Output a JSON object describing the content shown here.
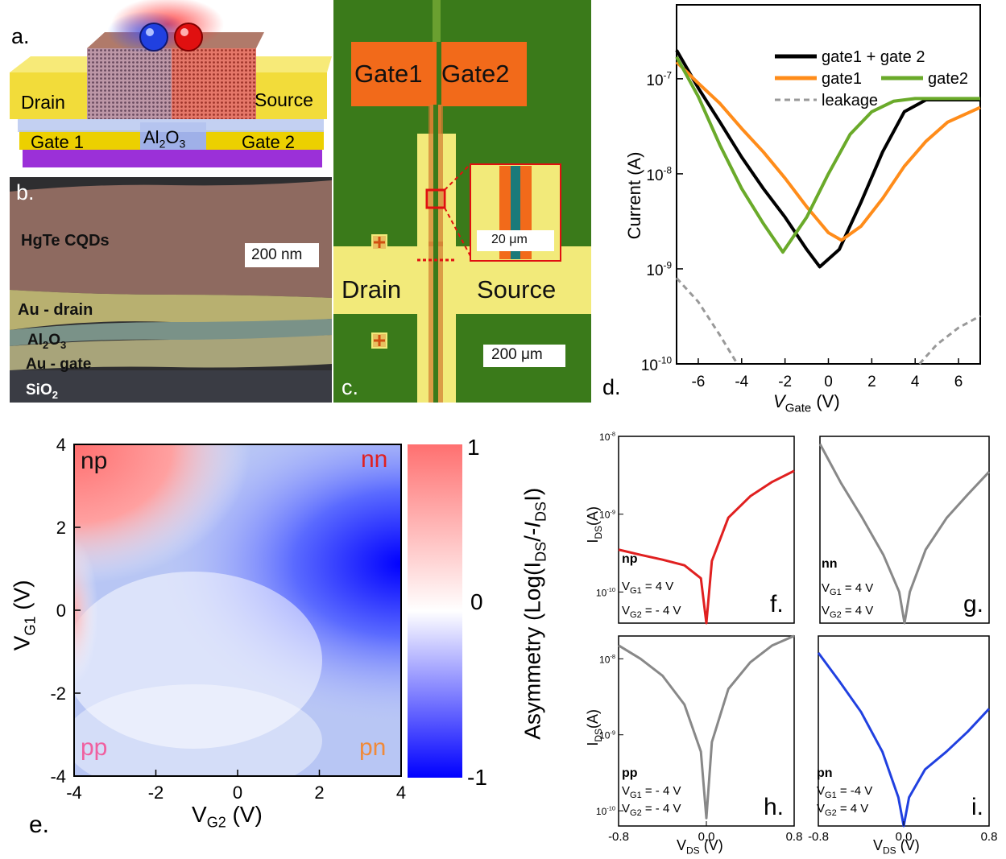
{
  "panel_a": {
    "letter": "a.",
    "drain": "Drain",
    "source": "Source",
    "gate1": "Gate 1",
    "gate2": "Gate 2",
    "oxide": "Al",
    "oxide_sub2": "2",
    "oxide_o": "O",
    "oxide_sub3": "3"
  },
  "panel_b": {
    "letter": "b.",
    "hgte": "HgTe CQDs",
    "scale": "200 nm",
    "au_drain": "Au - drain",
    "al": "Al",
    "al_sub2": "2",
    "al_o": "O",
    "al_sub3": "3",
    "au_gate": "Au - gate",
    "sio": "SiO",
    "sio_sub2": "2"
  },
  "panel_c": {
    "letter": "c.",
    "gate1": "Gate1",
    "gate2": "Gate2",
    "drain": "Drain",
    "source": "Source",
    "scale_large": "200 μm",
    "scale_small": "20 μm"
  },
  "panel_d": {
    "letter": "d.",
    "ylabel": "Current (A)",
    "xlabel_v": "V",
    "xlabel_sub": "Gate",
    "xlabel_unit": " (V)",
    "xticks": [
      "-6",
      "-4",
      "-2",
      "0",
      "2",
      "4",
      "6"
    ],
    "ytick_base": "10",
    "ytick_exps": [
      "-7",
      "-8",
      "-9",
      "-10"
    ],
    "legend": [
      "gate1 + gate 2",
      "gate1",
      "gate2",
      "leakage"
    ],
    "colors": {
      "both": "#000000",
      "gate1": "#ff8c1a",
      "gate2": "#6aaa2a",
      "leakage": "#999999"
    }
  },
  "panel_e": {
    "letter": "e.",
    "ylabel_v": "V",
    "ylabel_sub": "G1",
    "ylabel_unit": " (V)",
    "xlabel_v": "V",
    "xlabel_sub": "G2",
    "xlabel_unit": " (V)",
    "xticks": [
      "-4",
      "-2",
      "0",
      "2",
      "4"
    ],
    "yticks": [
      "4",
      "2",
      "0",
      "-2",
      "-4"
    ],
    "corner_np": "np",
    "corner_nn": "nn",
    "corner_pp": "pp",
    "corner_pn": "pn",
    "colorbar_ticks": [
      "1",
      "0",
      "-1"
    ],
    "colorbar_label_a": "Asymmetry (Log(I",
    "colorbar_sub1": "DS",
    "colorbar_label_b": "/-",
    "colorbar_i": "I",
    "colorbar_sub2": "DS",
    "colorbar_label_c": "I)",
    "colors": {
      "pos": "#ff7070",
      "neg": "#0000ff",
      "mid": "#ffffff"
    }
  },
  "panels_fghi": {
    "ylabel_i": "I",
    "ylabel_sub": "DS",
    "ylabel_unit": "(A)",
    "xlabel_v": "V",
    "xlabel_sub": "DS",
    "xlabel_unit": " (V)",
    "ytick_base": "10",
    "xticks_left": [
      "-0.8",
      "0.0",
      "0.8"
    ],
    "xticks_right": [
      "-0.8",
      "0.0",
      "0.8"
    ],
    "f": {
      "letter": "f.",
      "tag": "np",
      "vg1": "V",
      "vg1_sub": "G1",
      "vg1_val": " =  4 V",
      "vg2": "V",
      "vg2_sub": "G2",
      "vg2_val": " = - 4 V",
      "color": "#e02020",
      "exps": [
        "-8",
        "-9",
        "-10"
      ]
    },
    "g": {
      "letter": "g.",
      "tag": "nn",
      "vg1": "V",
      "vg1_sub": "G1",
      "vg1_val": " = 4 V",
      "vg2": "V",
      "vg2_sub": "G2",
      "vg2_val": " = 4 V",
      "color": "#888888"
    },
    "h": {
      "letter": "h.",
      "tag": "pp",
      "vg1": "V",
      "vg1_sub": "G1",
      "vg1_val": " = - 4 V",
      "vg2": "V",
      "vg2_sub": "G2",
      "vg2_val": " = - 4 V",
      "color": "#888888",
      "exps": [
        "-8",
        "-9",
        "-10"
      ]
    },
    "i": {
      "letter": "i.",
      "tag": "pn",
      "vg1": "V",
      "vg1_sub": "G1",
      "vg1_val": " = -4 V",
      "vg2": "V",
      "vg2_sub": "G2",
      "vg2_val": " = 4 V",
      "color": "#2040e0"
    }
  },
  "chart_data": [
    {
      "type": "line",
      "panel": "d",
      "xlabel": "VGate (V)",
      "ylabel": "Current (A)",
      "xlim": [
        -7,
        7
      ],
      "ylim": [
        1e-10,
        6e-07
      ],
      "yscale": "log",
      "series": [
        {
          "name": "gate1 + gate 2",
          "x": [
            -7,
            -6,
            -5,
            -4,
            -3,
            -2,
            -1,
            -0.4,
            0.5,
            1.5,
            2.5,
            3.5,
            4.5,
            5.5,
            7
          ],
          "y": [
            2e-07,
            8e-08,
            3.5e-08,
            1.5e-08,
            7e-09,
            3.5e-09,
            1.6e-09,
            1.05e-09,
            1.6e-09,
            5e-09,
            1.7e-08,
            4.5e-08,
            6e-08,
            6e-08,
            6e-08
          ]
        },
        {
          "name": "gate1",
          "x": [
            -7,
            -6,
            -5,
            -4,
            -3,
            -2,
            -1,
            0,
            0.6,
            1.5,
            2.5,
            3.5,
            4.5,
            5.5,
            7
          ],
          "y": [
            1.5e-07,
            9e-08,
            5.5e-08,
            3e-08,
            1.7e-08,
            9e-09,
            4.5e-09,
            2.4e-09,
            2e-09,
            2.8e-09,
            5.5e-09,
            1.2e-08,
            2.2e-08,
            3.5e-08,
            5e-08
          ]
        },
        {
          "name": "gate2",
          "x": [
            -7,
            -6,
            -5,
            -4,
            -3,
            -2.1,
            -1,
            0,
            1,
            2,
            3,
            4,
            5,
            6,
            7
          ],
          "y": [
            1.7e-07,
            6.5e-08,
            2e-08,
            7e-09,
            3e-09,
            1.5e-09,
            3.5e-09,
            1e-08,
            2.6e-08,
            4.5e-08,
            5.8e-08,
            6.2e-08,
            6.2e-08,
            6.2e-08,
            6.2e-08
          ]
        },
        {
          "name": "leakage",
          "x": [
            -7,
            -6,
            -5,
            -4.2,
            4.2,
            5,
            6,
            7
          ],
          "y": [
            8e-10,
            4.5e-10,
            2e-10,
            1e-10,
            1e-10,
            1.6e-10,
            2.4e-10,
            3.2e-10
          ]
        }
      ]
    },
    {
      "type": "heatmap",
      "panel": "e",
      "xlabel": "VG2 (V)",
      "ylabel": "VG1 (V)",
      "xlim": [
        -4,
        4
      ],
      "ylim": [
        -4,
        4
      ],
      "zlim": [
        -1,
        1
      ],
      "colorbar_label": "Asymmetry (Log(IDS/-IDSI)"
    },
    {
      "type": "line",
      "panel": "f",
      "xlabel": "VDS (V)",
      "ylabel": "IDS(A)",
      "xlim": [
        -0.8,
        0.8
      ],
      "yscale": "log",
      "series": [
        {
          "name": "np",
          "x": [
            -0.8,
            -0.6,
            -0.4,
            -0.2,
            -0.05,
            0,
            0.05,
            0.2,
            0.4,
            0.6,
            0.8
          ],
          "y": [
            3.5e-10,
            3e-10,
            2.6e-10,
            2.2e-10,
            1.5e-10,
            3e-11,
            2.5e-10,
            9e-10,
            1.7e-09,
            2.6e-09,
            3.6e-09
          ]
        }
      ]
    },
    {
      "type": "line",
      "panel": "g",
      "xlabel": "VDS (V)",
      "xlim": [
        -0.8,
        0.8
      ],
      "yscale": "log",
      "series": [
        {
          "name": "nn",
          "x": [
            -0.8,
            -0.6,
            -0.4,
            -0.2,
            -0.05,
            0,
            0.05,
            0.2,
            0.4,
            0.6,
            0.8
          ],
          "y": [
            8e-09,
            2.5e-09,
            9e-10,
            3e-10,
            1e-10,
            3e-11,
            1e-10,
            3.5e-10,
            9e-10,
            1.8e-09,
            3.5e-09
          ]
        }
      ]
    },
    {
      "type": "line",
      "panel": "h",
      "xlabel": "VDS (V)",
      "ylabel": "IDS(A)",
      "xlim": [
        -0.8,
        0.8
      ],
      "yscale": "log",
      "series": [
        {
          "name": "pp",
          "x": [
            -0.8,
            -0.6,
            -0.4,
            -0.2,
            -0.05,
            0,
            0.05,
            0.2,
            0.4,
            0.6,
            0.8
          ],
          "y": [
            1.5e-08,
            1e-08,
            6e-09,
            2.5e-09,
            6e-10,
            8e-11,
            8e-10,
            4e-09,
            9e-09,
            1.5e-08,
            2e-08
          ]
        }
      ]
    },
    {
      "type": "line",
      "panel": "i",
      "xlabel": "VDS (V)",
      "xlim": [
        -0.8,
        0.8
      ],
      "yscale": "log",
      "series": [
        {
          "name": "pn",
          "x": [
            -0.8,
            -0.6,
            -0.4,
            -0.2,
            -0.05,
            0,
            0.05,
            0.2,
            0.4,
            0.6,
            0.8
          ],
          "y": [
            1.2e-08,
            5e-09,
            2e-09,
            6e-10,
            1.5e-10,
            4e-11,
            1.5e-10,
            3.5e-10,
            6e-10,
            1.1e-09,
            2.2e-09
          ]
        }
      ]
    }
  ]
}
